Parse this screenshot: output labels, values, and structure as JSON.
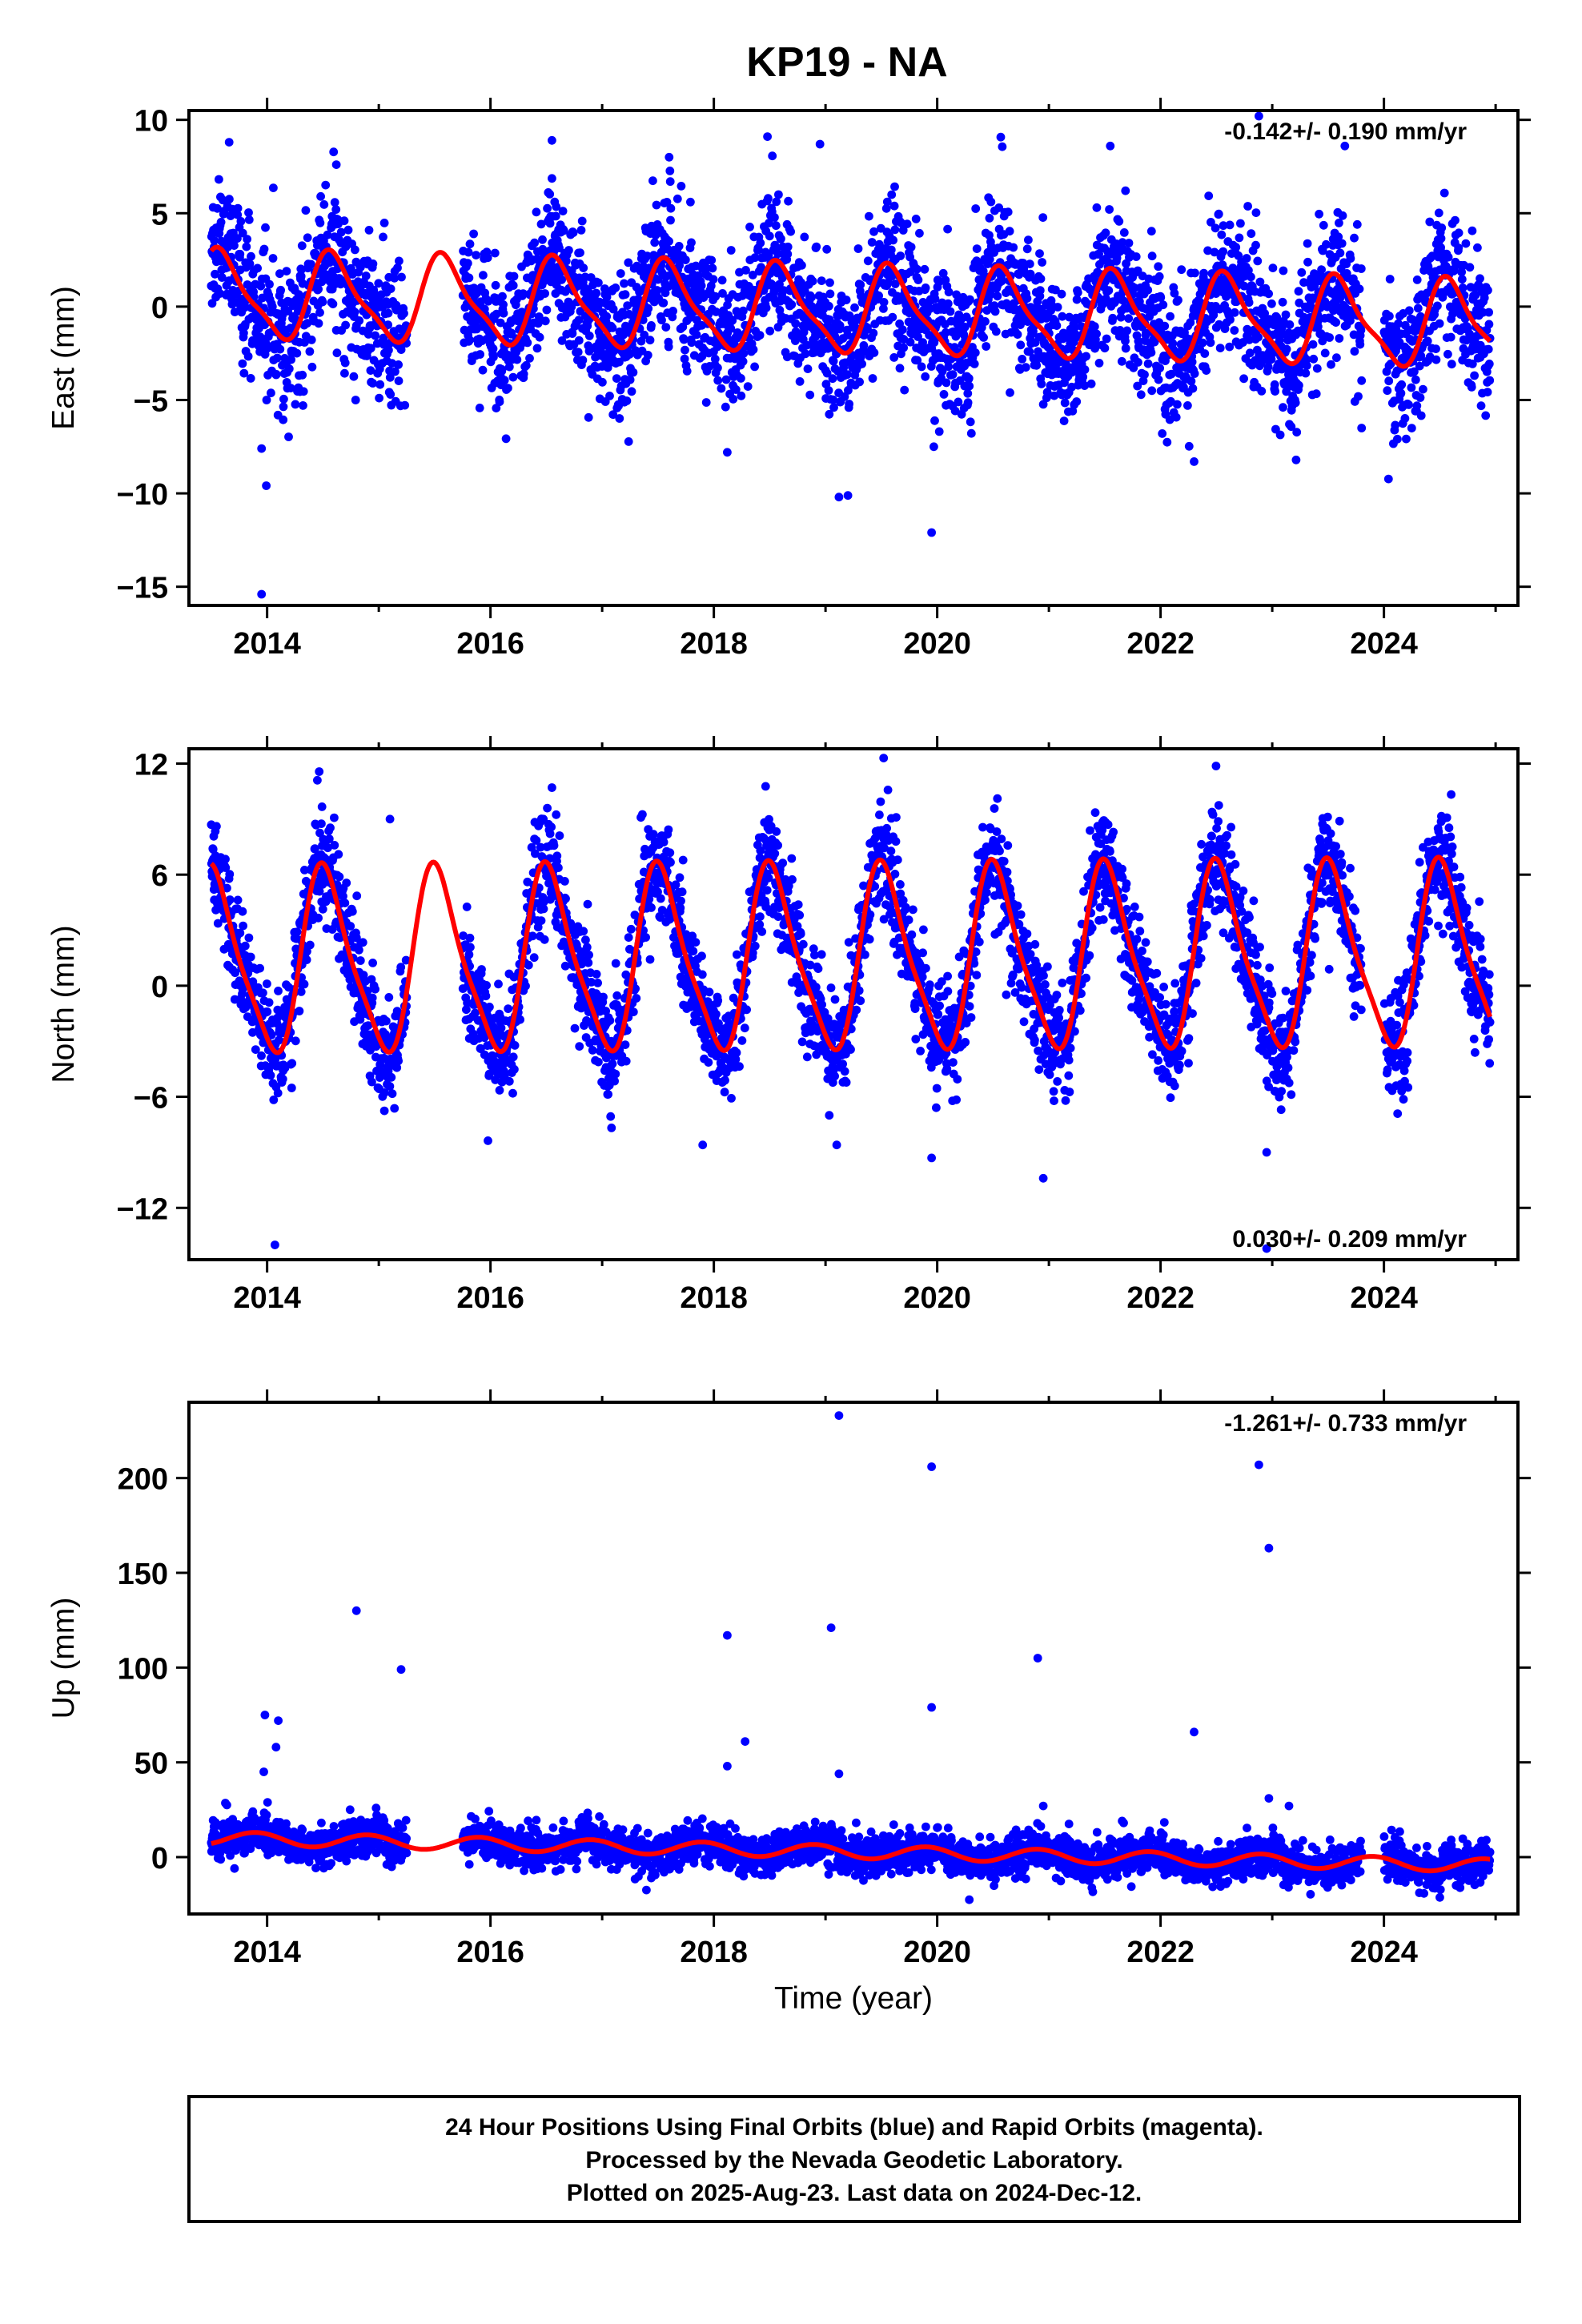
{
  "title": "KP19 - NA",
  "colors": {
    "points": "#0000ff",
    "fit": "#ff0000",
    "frame": "#000000"
  },
  "caption": {
    "lines": [
      "24 Hour Positions Using Final Orbits (blue) and Rapid Orbits (magenta).",
      "Processed by the Nevada Geodetic Laboratory.",
      "Plotted on 2025-Aug-23. Last data on 2024-Dec-12."
    ]
  },
  "chart_data": [
    {
      "type": "scatter",
      "panel": "east",
      "ylabel": "East (mm)",
      "xlabel": "",
      "xlim": [
        2013.3,
        2025.2
      ],
      "ylim": [
        -16,
        10.5
      ],
      "xticks": [
        2014,
        2016,
        2018,
        2020,
        2022,
        2024
      ],
      "xtick_labels": [
        "2014",
        "2016",
        "2018",
        "2020",
        "2022",
        "2024"
      ],
      "yticks": [
        -15,
        -10,
        -5,
        0,
        5,
        10
      ],
      "ytick_labels": [
        "−15",
        "−10",
        "−5",
        "0",
        "5",
        "10"
      ],
      "rate": "-0.142+/- 0.190 mm/yr",
      "rate_position": "top-right",
      "data_span": [
        2013.5,
        2024.95
      ],
      "gaps": [
        [
          2015.25,
          2015.75
        ],
        [
          2023.8,
          2024.0
        ]
      ],
      "fit": {
        "rate_mm_yr": -0.142,
        "offset_mm": 0.6,
        "amplitude_mm": 2.2,
        "peak": 2013.6,
        "harm2": 0.6,
        "noise_sd": 1.8
      },
      "outliers": [
        {
          "x": 2013.95,
          "y": -15.4
        },
        {
          "x": 2013.95,
          "y": -7.6
        },
        {
          "x": 2013.66,
          "y": 8.8
        },
        {
          "x": 2014.62,
          "y": 7.6
        },
        {
          "x": 2016.55,
          "y": 8.9
        },
        {
          "x": 2017.6,
          "y": 8.0
        },
        {
          "x": 2018.12,
          "y": -7.8
        },
        {
          "x": 2018.95,
          "y": 8.7
        },
        {
          "x": 2018.48,
          "y": 9.1
        },
        {
          "x": 2019.12,
          "y": -10.2
        },
        {
          "x": 2019.95,
          "y": -12.1
        },
        {
          "x": 2019.97,
          "y": -7.5
        },
        {
          "x": 2021.55,
          "y": 8.6
        },
        {
          "x": 2022.3,
          "y": -8.3
        },
        {
          "x": 2022.88,
          "y": 10.2
        },
        {
          "x": 2023.65,
          "y": 8.6
        },
        {
          "x": 2023.8,
          "y": -6.5
        }
      ]
    },
    {
      "type": "scatter",
      "panel": "north",
      "ylabel": "North (mm)",
      "xlabel": "",
      "xlim": [
        2013.3,
        2025.2
      ],
      "ylim": [
        -14.8,
        12.8
      ],
      "xticks": [
        2014,
        2016,
        2018,
        2020,
        2022,
        2024
      ],
      "xtick_labels": [
        "2014",
        "2016",
        "2018",
        "2020",
        "2022",
        "2024"
      ],
      "yticks": [
        -12,
        -6,
        0,
        6,
        12
      ],
      "ytick_labels": [
        "−12",
        "−6",
        "0",
        "6",
        "12"
      ],
      "rate": "0.030+/- 0.209 mm/yr",
      "rate_position": "bottom-right",
      "data_span": [
        2013.5,
        2024.95
      ],
      "gaps": [
        [
          2015.25,
          2015.75
        ],
        [
          2023.8,
          2024.0
        ]
      ],
      "fit": {
        "rate_mm_yr": 0.03,
        "offset_mm": 1.2,
        "amplitude_mm": 4.8,
        "peak": 2013.53,
        "harm2": 1.0,
        "noise_sd": 1.4
      },
      "outliers": [
        {
          "x": 2014.07,
          "y": -14.0
        },
        {
          "x": 2014.45,
          "y": 11.1
        },
        {
          "x": 2015.1,
          "y": 9.0
        },
        {
          "x": 2016.55,
          "y": 10.7
        },
        {
          "x": 2017.9,
          "y": -8.6
        },
        {
          "x": 2019.1,
          "y": -8.6
        },
        {
          "x": 2019.52,
          "y": 12.3
        },
        {
          "x": 2019.95,
          "y": -9.3
        },
        {
          "x": 2020.95,
          "y": -10.4
        },
        {
          "x": 2022.95,
          "y": -9.0
        },
        {
          "x": 2022.95,
          "y": -14.2
        }
      ]
    },
    {
      "type": "scatter",
      "panel": "up",
      "ylabel": "Up (mm)",
      "xlabel": "Time (year)",
      "xlim": [
        2013.3,
        2025.2
      ],
      "ylim": [
        -30,
        240
      ],
      "xticks": [
        2014,
        2016,
        2018,
        2020,
        2022,
        2024
      ],
      "xtick_labels": [
        "2014",
        "2016",
        "2018",
        "2020",
        "2022",
        "2024"
      ],
      "yticks": [
        0,
        50,
        100,
        150,
        200
      ],
      "ytick_labels": [
        "0",
        "50",
        "100",
        "150",
        "200"
      ],
      "rate": "-1.261+/- 0.733 mm/yr",
      "rate_position": "top-right",
      "data_span": [
        2013.5,
        2024.95
      ],
      "gaps": [
        [
          2015.25,
          2015.75
        ],
        [
          2023.8,
          2024.0
        ]
      ],
      "fit": {
        "rate_mm_yr": -1.261,
        "offset_mm": 10.0,
        "amplitude_mm": 3.5,
        "peak": 2013.9,
        "harm2": 0.0,
        "noise_sd": 5.0
      },
      "outliers": [
        {
          "x": 2013.98,
          "y": 75
        },
        {
          "x": 2013.97,
          "y": 45
        },
        {
          "x": 2014.1,
          "y": 72
        },
        {
          "x": 2014.08,
          "y": 58
        },
        {
          "x": 2014.8,
          "y": 130
        },
        {
          "x": 2015.2,
          "y": 99
        },
        {
          "x": 2018.12,
          "y": 117
        },
        {
          "x": 2018.12,
          "y": 48
        },
        {
          "x": 2018.28,
          "y": 61
        },
        {
          "x": 2019.05,
          "y": 121
        },
        {
          "x": 2019.12,
          "y": 233
        },
        {
          "x": 2019.12,
          "y": 44
        },
        {
          "x": 2019.95,
          "y": 206
        },
        {
          "x": 2019.95,
          "y": 79
        },
        {
          "x": 2020.9,
          "y": 105
        },
        {
          "x": 2020.95,
          "y": 27
        },
        {
          "x": 2022.3,
          "y": 66
        },
        {
          "x": 2022.88,
          "y": 207
        },
        {
          "x": 2022.97,
          "y": 163
        },
        {
          "x": 2022.97,
          "y": 31
        },
        {
          "x": 2023.15,
          "y": 27
        }
      ]
    }
  ]
}
